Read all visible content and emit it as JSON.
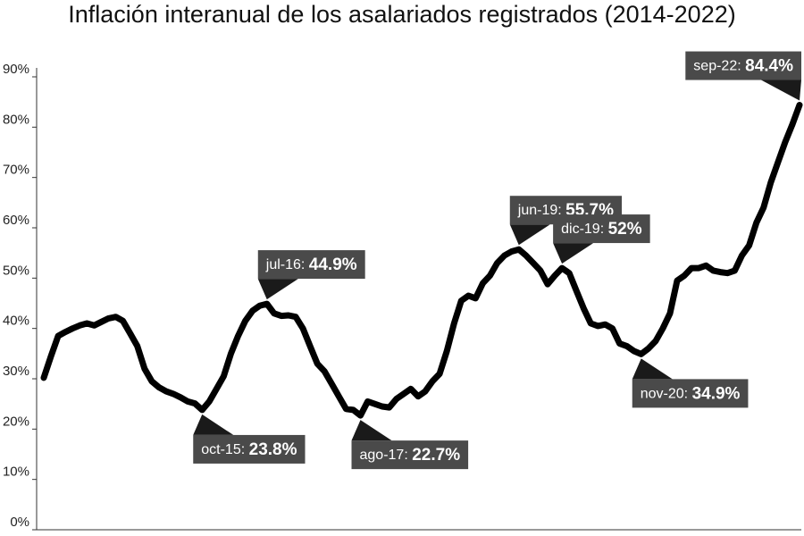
{
  "chart_data": {
    "type": "line",
    "title": "Inflación interanual de los asalariados registrados (2014-2022)",
    "color": "#000000",
    "ylim": [
      0,
      90
    ],
    "yticks": [
      {
        "value": 0,
        "label": "0%"
      },
      {
        "value": 10,
        "label": "10%"
      },
      {
        "value": 20,
        "label": "20%"
      },
      {
        "value": 30,
        "label": "30%"
      },
      {
        "value": 40,
        "label": "40%"
      },
      {
        "value": 50,
        "label": "50%"
      },
      {
        "value": 60,
        "label": "60%"
      },
      {
        "value": 70,
        "label": "70%"
      },
      {
        "value": 80,
        "label": "80%"
      },
      {
        "value": 90,
        "label": "90%"
      }
    ],
    "grid": false,
    "categories": [
      null,
      null,
      null,
      null,
      null,
      null,
      null,
      null,
      null,
      null,
      null,
      null,
      null,
      null,
      null,
      null,
      null,
      null,
      null,
      null,
      null,
      null,
      "oct-15:",
      null,
      null,
      null,
      null,
      null,
      null,
      null,
      null,
      "jul-16:",
      null,
      null,
      null,
      null,
      null,
      null,
      null,
      null,
      null,
      null,
      null,
      null,
      "ago-17:",
      null,
      null,
      null,
      null,
      null,
      null,
      null,
      null,
      null,
      null,
      null,
      null,
      null,
      null,
      null,
      null,
      null,
      null,
      null,
      null,
      null,
      "jun-19:",
      null,
      null,
      null,
      null,
      null,
      "dic-19:",
      null,
      null,
      null,
      null,
      null,
      null,
      null,
      null,
      null,
      null,
      "nov-20:",
      null,
      null,
      null,
      null,
      null,
      null,
      null,
      null,
      null,
      null,
      null,
      null,
      null,
      null,
      null,
      null,
      null,
      null,
      null,
      null,
      null,
      "sep-22:"
    ],
    "values": [
      30.2,
      34.5,
      38.5,
      39.3,
      40,
      40.6,
      41,
      40.6,
      41.3,
      42,
      42.3,
      41.5,
      39,
      36.5,
      32,
      29.5,
      28.3,
      27.5,
      27,
      26.3,
      25.5,
      25.1,
      23.8,
      25.5,
      28,
      30.5,
      35,
      38.5,
      41.5,
      43.5,
      44.5,
      44.9,
      43,
      42.5,
      42.6,
      42.3,
      40,
      36.5,
      33,
      31.5,
      29,
      26.5,
      24,
      23.8,
      22.7,
      25.5,
      25,
      24.5,
      24.3,
      26,
      27,
      28,
      26.5,
      27.5,
      29.5,
      31,
      35.5,
      41,
      45.5,
      46.5,
      46,
      49,
      50.5,
      53,
      54.5,
      55.3,
      55.7,
      54.5,
      53,
      51.5,
      48.8,
      50.5,
      52,
      51,
      47.5,
      44,
      41,
      40.5,
      40.8,
      40,
      37,
      36.5,
      35.5,
      34.9,
      36,
      37.5,
      40,
      43,
      49.5,
      50.5,
      52,
      52,
      52.5,
      51.5,
      51.2,
      51,
      51.5,
      54.5,
      56.5,
      61,
      64,
      69,
      73,
      77,
      80.5,
      84.4
    ],
    "value_labels": [
      null,
      null,
      null,
      null,
      null,
      null,
      null,
      null,
      null,
      null,
      null,
      null,
      null,
      null,
      null,
      null,
      null,
      null,
      null,
      null,
      null,
      null,
      "23.8%",
      null,
      null,
      null,
      null,
      null,
      null,
      null,
      null,
      "44.9%",
      null,
      null,
      null,
      null,
      null,
      null,
      null,
      null,
      null,
      null,
      null,
      null,
      "22.7%",
      null,
      null,
      null,
      null,
      null,
      null,
      null,
      null,
      null,
      null,
      null,
      null,
      null,
      null,
      null,
      null,
      null,
      null,
      null,
      null,
      null,
      "55.7%",
      null,
      null,
      null,
      null,
      null,
      "52%",
      null,
      null,
      null,
      null,
      null,
      null,
      null,
      null,
      null,
      null,
      "34.9%",
      null,
      null,
      null,
      null,
      null,
      null,
      null,
      null,
      null,
      null,
      null,
      null,
      null,
      null,
      null,
      null,
      null,
      null,
      null,
      null,
      null,
      "84.4%"
    ]
  }
}
